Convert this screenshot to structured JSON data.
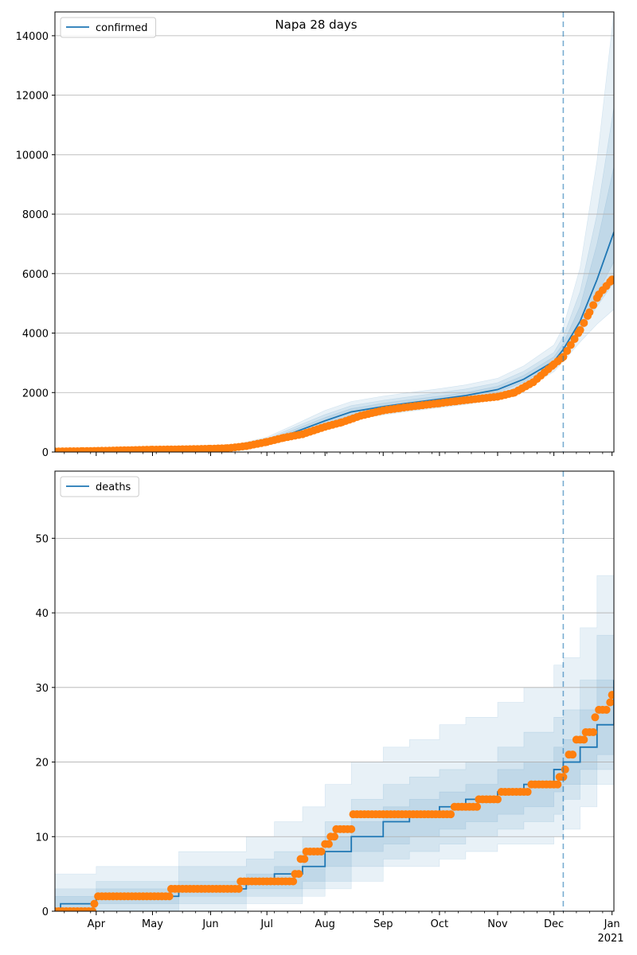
{
  "figure": {
    "title": "Napa 28 days"
  },
  "colors": {
    "model": "#1f77b4",
    "observed": "#ff7f0e",
    "band": "#1f77b4",
    "grid": "#b0b0b0",
    "forecast_line": "#1f77b4"
  },
  "chart_data": [
    {
      "type": "line",
      "panel": "top",
      "title": "Napa 28 days",
      "legend": {
        "label": "confirmed",
        "position": "top-left"
      },
      "xlim": [
        "2020-03-10",
        "2021-01-02"
      ],
      "ylim": [
        0,
        14800
      ],
      "yticks": [
        0,
        2000,
        4000,
        6000,
        8000,
        10000,
        12000,
        14000
      ],
      "grid": "horizontal",
      "forecast_start": "2020-12-06",
      "model_series": {
        "name": "confirmed",
        "x": [
          "2020-03-10",
          "2020-04-01",
          "2020-05-01",
          "2020-06-01",
          "2020-06-15",
          "2020-07-01",
          "2020-07-15",
          "2020-08-01",
          "2020-08-15",
          "2020-09-01",
          "2020-09-15",
          "2020-10-01",
          "2020-10-15",
          "2020-11-01",
          "2020-11-15",
          "2020-12-01",
          "2020-12-06",
          "2020-12-15",
          "2020-12-24",
          "2021-01-02"
        ],
        "y": [
          30,
          40,
          80,
          120,
          170,
          350,
          650,
          1050,
          1350,
          1530,
          1650,
          1780,
          1900,
          2100,
          2450,
          3050,
          3450,
          4400,
          5800,
          7400
        ],
        "bands": [
          {
            "lower": [
              0,
              10,
              40,
              80,
              110,
              230,
              470,
              800,
              1080,
              1250,
              1370,
              1490,
              1600,
              1780,
              2120,
              2700,
              3050,
              3700,
              4300,
              4800
            ],
            "upper": [
              80,
              90,
              130,
              190,
              260,
              500,
              900,
              1400,
              1700,
              1880,
              2000,
              2130,
              2260,
              2480,
              2900,
              3600,
              4200,
              6200,
              9800,
              14800
            ]
          },
          {
            "lower": [
              10,
              20,
              55,
              95,
              130,
              270,
              540,
              900,
              1180,
              1350,
              1470,
              1600,
              1720,
              1920,
              2260,
              2850,
              3220,
              4000,
              4900,
              5700
            ],
            "upper": [
              60,
              70,
              110,
              160,
              230,
              440,
              820,
              1260,
              1560,
              1740,
              1860,
              2000,
              2120,
              2330,
              2720,
              3350,
              3880,
              5400,
              8000,
              11600
            ]
          },
          {
            "lower": [
              20,
              30,
              65,
              105,
              145,
              300,
              590,
              960,
              1250,
              1420,
              1540,
              1680,
              1800,
              2010,
              2350,
              2950,
              3330,
              4200,
              5300,
              6400
            ],
            "upper": [
              45,
              55,
              95,
              140,
              200,
              400,
              740,
              1160,
              1460,
              1640,
              1760,
              1880,
              2000,
              2210,
              2580,
              3200,
              3650,
              4900,
              7000,
              9600
            ]
          }
        ]
      },
      "observed": {
        "name": "observed",
        "x": [
          "2020-03-10",
          "2020-03-25",
          "2020-04-10",
          "2020-05-01",
          "2020-05-15",
          "2020-06-01",
          "2020-06-10",
          "2020-06-20",
          "2020-07-01",
          "2020-07-10",
          "2020-07-20",
          "2020-08-01",
          "2020-08-10",
          "2020-08-20",
          "2020-09-01",
          "2020-09-10",
          "2020-09-20",
          "2020-10-01",
          "2020-10-10",
          "2020-10-20",
          "2020-11-01",
          "2020-11-10",
          "2020-11-20",
          "2020-12-01",
          "2020-12-06",
          "2020-12-10",
          "2020-12-15",
          "2020-12-20",
          "2020-12-25",
          "2021-01-01"
        ],
        "y": [
          20,
          30,
          50,
          80,
          90,
          110,
          130,
          200,
          340,
          480,
          600,
          850,
          1000,
          1220,
          1400,
          1480,
          1560,
          1640,
          1710,
          1780,
          1860,
          2000,
          2350,
          2950,
          3200,
          3600,
          4100,
          4700,
          5300,
          5800
        ]
      }
    },
    {
      "type": "line",
      "panel": "bottom",
      "legend": {
        "label": "deaths",
        "position": "top-left"
      },
      "xlim": [
        "2020-03-10",
        "2021-01-02"
      ],
      "ylim": [
        0,
        59
      ],
      "yticks": [
        0,
        10,
        20,
        30,
        40,
        50
      ],
      "xticks": [
        {
          "date": "2020-04-01",
          "label": "Apr"
        },
        {
          "date": "2020-05-01",
          "label": "May"
        },
        {
          "date": "2020-06-01",
          "label": "Jun"
        },
        {
          "date": "2020-07-01",
          "label": "Jul"
        },
        {
          "date": "2020-08-01",
          "label": "Aug"
        },
        {
          "date": "2020-09-01",
          "label": "Sep"
        },
        {
          "date": "2020-10-01",
          "label": "Oct"
        },
        {
          "date": "2020-11-01",
          "label": "Nov"
        },
        {
          "date": "2020-12-01",
          "label": "Dec"
        },
        {
          "date": "2021-01-01",
          "label": "Jan"
        }
      ],
      "year_label": "2021",
      "grid": "horizontal",
      "forecast_start": "2020-12-06",
      "model_series": {
        "name": "deaths",
        "x": [
          "2020-03-10",
          "2020-03-13",
          "2020-04-01",
          "2020-05-15",
          "2020-06-20",
          "2020-07-05",
          "2020-07-20",
          "2020-08-01",
          "2020-08-15",
          "2020-09-01",
          "2020-09-15",
          "2020-10-01",
          "2020-10-15",
          "2020-11-01",
          "2020-11-15",
          "2020-12-01",
          "2020-12-06",
          "2020-12-15",
          "2020-12-24",
          "2021-01-02"
        ],
        "y": [
          0,
          1,
          2,
          3,
          4,
          5,
          6,
          8,
          10,
          12,
          13,
          14,
          15,
          16,
          17,
          19,
          20,
          22,
          25,
          31
        ],
        "bands": [
          {
            "lower": [
              0,
              0,
              0,
              0,
              1,
              1,
              2,
              3,
              4,
              6,
              6,
              7,
              8,
              9,
              9,
              10,
              11,
              14,
              17,
              20
            ],
            "upper": [
              5,
              5,
              6,
              8,
              10,
              12,
              14,
              17,
              20,
              22,
              23,
              25,
              26,
              28,
              30,
              33,
              34,
              38,
              45,
              58
            ]
          },
          {
            "lower": [
              0,
              0,
              0,
              1,
              2,
              2,
              3,
              4,
              6,
              7,
              8,
              9,
              10,
              11,
              12,
              13,
              15,
              17,
              19,
              22
            ],
            "upper": [
              3,
              3,
              4,
              6,
              7,
              8,
              10,
              12,
              15,
              17,
              18,
              19,
              20,
              22,
              24,
              26,
              27,
              31,
              37,
              48
            ]
          },
          {
            "lower": [
              0,
              0,
              1,
              2,
              3,
              3,
              4,
              6,
              8,
              9,
              10,
              11,
              12,
              13,
              14,
              16,
              17,
              19,
              21,
              24
            ],
            "upper": [
              2,
              2,
              3,
              4,
              5,
              6,
              8,
              10,
              12,
              14,
              15,
              16,
              17,
              19,
              20,
              22,
              23,
              27,
              31,
              40
            ]
          }
        ]
      },
      "observed": {
        "name": "observed",
        "x": [
          "2020-03-10",
          "2020-03-31",
          "2020-04-02",
          "2020-05-11",
          "2020-06-17",
          "2020-07-16",
          "2020-07-19",
          "2020-07-22",
          "2020-08-01",
          "2020-08-04",
          "2020-08-07",
          "2020-08-16",
          "2020-09-25",
          "2020-10-09",
          "2020-10-13",
          "2020-10-22",
          "2020-11-03",
          "2020-11-19",
          "2020-12-01",
          "2020-12-04",
          "2020-12-07",
          "2020-12-09",
          "2020-12-13",
          "2020-12-18",
          "2020-12-23",
          "2020-12-25",
          "2020-12-29",
          "2020-12-31",
          "2021-01-01"
        ],
        "y": [
          0,
          1,
          2,
          3,
          4,
          5,
          7,
          8,
          9,
          10,
          11,
          13,
          13,
          14,
          14,
          15,
          16,
          17,
          17,
          18,
          19,
          21,
          23,
          24,
          26,
          27,
          27,
          28,
          29
        ]
      }
    }
  ]
}
